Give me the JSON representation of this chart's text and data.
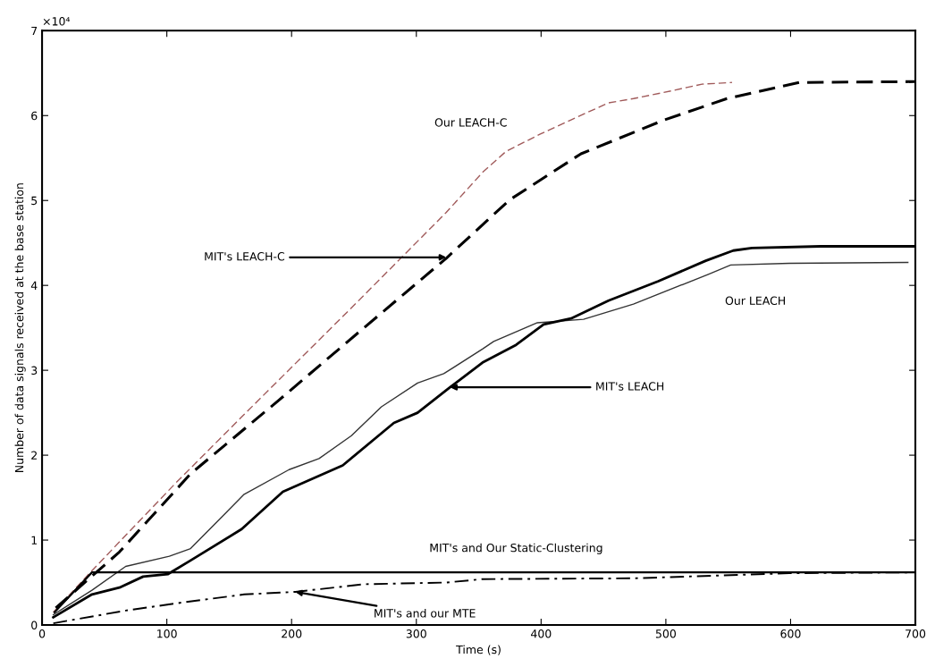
{
  "chart_data": {
    "type": "line",
    "xlabel": "Time (s)",
    "ylabel": "Number of data signals received at the base station",
    "xlim": [
      0,
      700
    ],
    "xticks": [
      0,
      100,
      200,
      300,
      400,
      500,
      600,
      700
    ],
    "ylim": [
      0,
      7
    ],
    "yticks": [
      0,
      1,
      2,
      3,
      4,
      5,
      6,
      7
    ],
    "grid": false,
    "legend": false,
    "series": [
      {
        "color": "#a05a5a",
        "line_style": "dashed",
        "x": [
          9,
          40,
          107,
          162,
          251,
          324,
          353,
          372,
          399,
          424,
          454,
          474,
          504,
          529,
          553
        ],
        "values": [
          0.15,
          0.64,
          1.67,
          2.48,
          3.78,
          4.86,
          5.33,
          5.58,
          5.78,
          5.95,
          6.15,
          6.2,
          6.29,
          6.37,
          6.39
        ]
      },
      {
        "color": "#000000",
        "line_style": "dashed",
        "x": [
          11,
          62,
          119,
          190,
          258,
          324,
          375,
          432,
          499,
          549,
          607,
          700
        ],
        "values": [
          0.2,
          0.86,
          1.78,
          2.65,
          3.5,
          4.32,
          5.01,
          5.55,
          5.95,
          6.2,
          6.39,
          6.4
        ]
      },
      {
        "color": "#333333",
        "line_style": "solid",
        "x": [
          9,
          40,
          67,
          102,
          119,
          162,
          198,
          222,
          248,
          272,
          301,
          322,
          353,
          362,
          397,
          434,
          474,
          534,
          552,
          599,
          694
        ],
        "values": [
          0.12,
          0.41,
          0.69,
          0.81,
          0.9,
          1.54,
          1.83,
          1.96,
          2.23,
          2.57,
          2.85,
          2.96,
          3.25,
          3.34,
          3.56,
          3.6,
          3.78,
          4.13,
          4.24,
          4.26,
          4.27
        ]
      },
      {
        "color": "#000000",
        "line_style": "solid",
        "x": [
          9,
          40,
          62,
          81,
          101,
          119,
          160,
          193,
          241,
          282,
          301,
          327,
          353,
          380,
          402,
          424,
          454,
          494,
          532,
          554,
          569,
          624,
          700
        ],
        "values": [
          0.09,
          0.36,
          0.44,
          0.57,
          0.6,
          0.76,
          1.13,
          1.57,
          1.88,
          2.38,
          2.5,
          2.8,
          3.09,
          3.3,
          3.54,
          3.61,
          3.82,
          4.05,
          4.29,
          4.41,
          4.44,
          4.46,
          4.46
        ]
      },
      {
        "color": "#000000",
        "line_style": "solid",
        "x": [
          10,
          40,
          700
        ],
        "values": [
          0.15,
          0.62,
          0.62
        ]
      },
      {
        "color": "#000000",
        "line_style": "dashdot",
        "x": [
          9,
          67,
          115,
          162,
          203,
          258,
          324,
          353,
          474,
          599,
          700
        ],
        "values": [
          0.02,
          0.17,
          0.27,
          0.36,
          0.39,
          0.48,
          0.5,
          0.54,
          0.55,
          0.61,
          0.62
        ]
      }
    ],
    "annotations": [
      "×10⁴",
      "Our LEACH-C",
      {
        "text": "MIT's LEACH-C",
        "x": 324,
        "y": 4.33
      },
      {
        "text": "Our LEACH",
        "x": 534,
        "y": 4.13
      },
      {
        "text": "MIT's LEACH",
        "x": 327,
        "y": 2.8
      },
      {
        "text": "MIT's and Our Static-Clustering",
        "x": 380,
        "y": 0.62
      },
      {
        "text": "MIT's and our MTE",
        "x": 203,
        "y": 0.39
      }
    ]
  }
}
